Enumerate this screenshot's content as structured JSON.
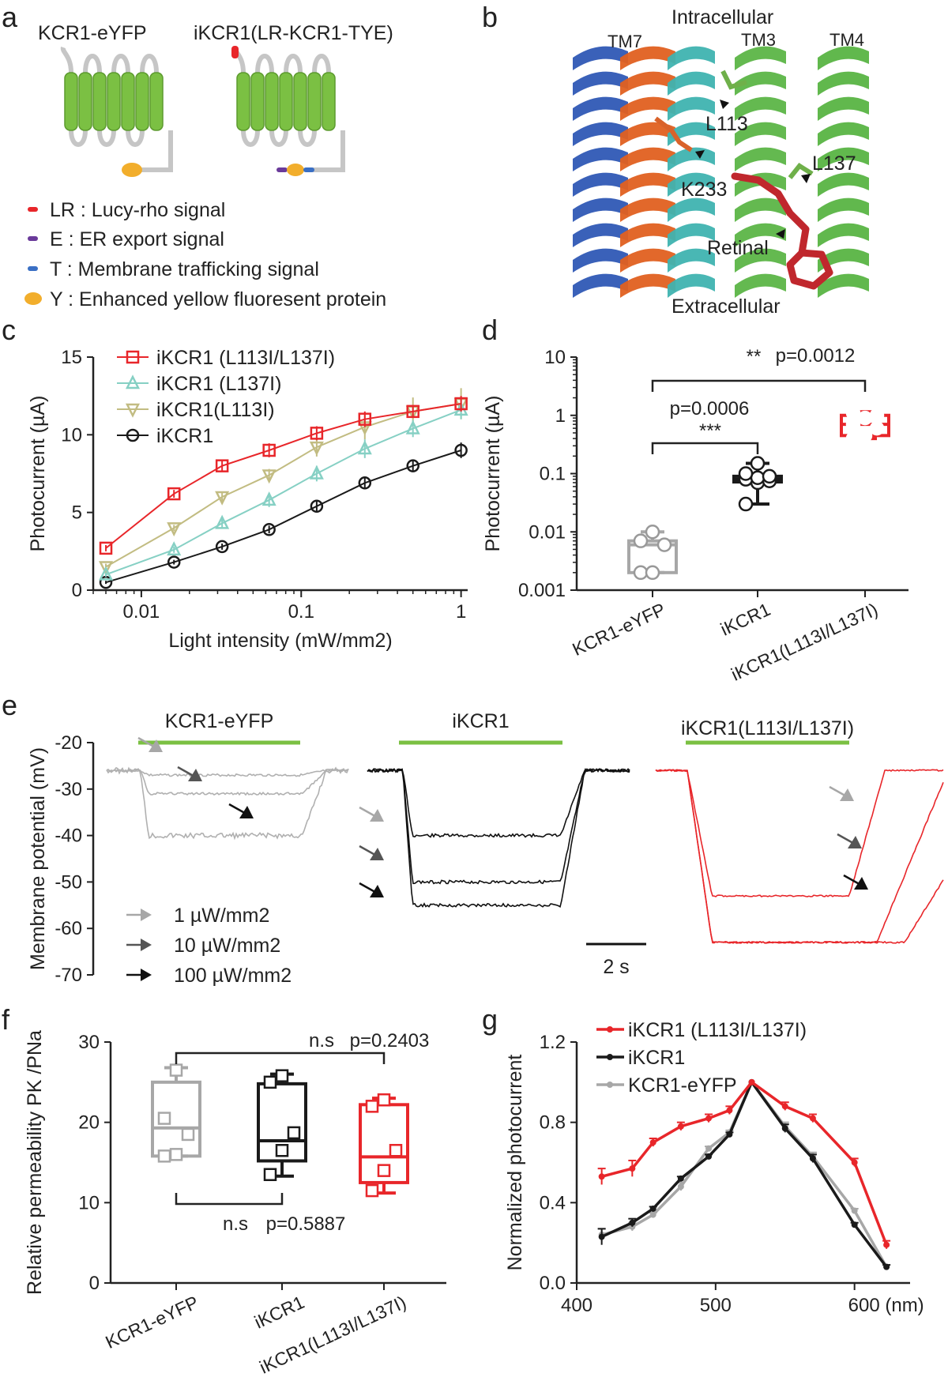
{
  "colors": {
    "red": "#e8262a",
    "black": "#1a1a1a",
    "gray": "#a7a7a7",
    "teal": "#86d0c4",
    "olive": "#c2bc82",
    "green": "#7bc043"
  },
  "panel_letters": [
    "a",
    "b",
    "c",
    "d",
    "e",
    "f",
    "g"
  ],
  "a": {
    "left_title": "KCR1-eYFP",
    "right_title": "iKCR1(LR-KCR1-TYE)",
    "legend": [
      {
        "key": "LR",
        "text": "LR : Lucy-rho signal",
        "color": "#e8262a"
      },
      {
        "key": "E",
        "text": "E : ER export signal",
        "color": "#6a3a9a"
      },
      {
        "key": "T",
        "text": "T : Membrane trafficking signal",
        "color": "#3a6fc4"
      },
      {
        "key": "Y",
        "text": "Y : Enhanced yellow fluoresent protein",
        "color": "#f2ae2c"
      }
    ]
  },
  "b": {
    "labels": [
      "Intracellular",
      "TM7",
      "TM3",
      "TM4",
      "L113",
      "L137",
      "K233",
      "Retinal",
      "Extracellular"
    ]
  },
  "chart_data": [
    {
      "panel": "c",
      "type": "line",
      "xlabel": "Light intensity (mW/mm2)",
      "ylabel": "Photocurrent (µA)",
      "xscale": "log",
      "xlim": [
        0.005,
        1.1
      ],
      "ylim": [
        0,
        15
      ],
      "xticks": [
        0.01,
        0.1,
        1
      ],
      "xtick_labels": [
        "0.01",
        "0.1",
        "1"
      ],
      "yticks": [
        0,
        5,
        10,
        15
      ],
      "ytick_labels": [
        "0",
        "5",
        "10",
        "15"
      ],
      "legend_position": "top-left",
      "x": [
        0.006,
        0.016,
        0.032,
        0.063,
        0.125,
        0.25,
        0.5,
        1
      ],
      "series": [
        {
          "name": "iKCR1 (L113I/L137I)",
          "color": "#e8262a",
          "marker": "square",
          "values": [
            2.7,
            6.2,
            8.0,
            9.0,
            10.1,
            11.0,
            11.5,
            12.0
          ],
          "errors": [
            0.2,
            0.25,
            0.35,
            0.45,
            0.45,
            0.5,
            0.4,
            0.5
          ]
        },
        {
          "name": "iKCR1 (L137I)",
          "color": "#86d0c4",
          "marker": "triangle-up",
          "values": [
            1.0,
            2.6,
            4.3,
            5.8,
            7.5,
            9.1,
            10.4,
            11.6
          ],
          "errors": [
            0.15,
            0.2,
            0.3,
            0.45,
            0.5,
            0.6,
            0.55,
            0.6
          ]
        },
        {
          "name": "iKCR1(L113I)",
          "color": "#c2bc82",
          "marker": "triangle-down",
          "values": [
            1.5,
            4.0,
            6.0,
            7.4,
            9.2,
            10.5,
            11.5,
            12.0
          ],
          "errors": [
            0.2,
            0.2,
            0.3,
            0.4,
            0.6,
            0.8,
            0.9,
            1.0
          ]
        },
        {
          "name": "iKCR1",
          "color": "#1a1a1a",
          "marker": "circle",
          "values": [
            0.5,
            1.8,
            2.8,
            3.9,
            5.4,
            6.9,
            8.0,
            9.0
          ],
          "errors": [
            0.1,
            0.15,
            0.2,
            0.25,
            0.3,
            0.4,
            0.4,
            0.5
          ]
        }
      ]
    },
    {
      "panel": "d",
      "type": "box",
      "ylabel": "Photocurrent (µA)",
      "yscale": "log",
      "ylim": [
        0.001,
        10
      ],
      "yticks": [
        0.001,
        0.01,
        0.1,
        1,
        10
      ],
      "ytick_labels": [
        "0.001",
        "0.01",
        "0.1",
        "1",
        "10"
      ],
      "categories": [
        "KCR1-eYFP",
        "iKCR1",
        "iKCR1(L113I/L137I)"
      ],
      "groups": [
        {
          "color": "#a7a7a7",
          "min": 0.002,
          "q1": 0.002,
          "median": 0.006,
          "q3": 0.007,
          "max": 0.01,
          "points": [
            0.002,
            0.002,
            0.006,
            0.007,
            0.01
          ]
        },
        {
          "color": "#1a1a1a",
          "min": 0.03,
          "q1": 0.072,
          "median": 0.08,
          "q3": 0.09,
          "max": 0.15,
          "points": [
            0.03,
            0.07,
            0.075,
            0.08,
            0.085,
            0.09,
            0.1,
            0.15
          ]
        },
        {
          "color": "#e8262a",
          "min": 0.4,
          "q1": 0.45,
          "median": 0.7,
          "q3": 1.0,
          "max": 1.15,
          "points": [
            0.4,
            0.45,
            0.6,
            0.7,
            0.9,
            1.0,
            1.1
          ]
        }
      ],
      "annotations": [
        {
          "stars": "***",
          "p": "p=0.0006",
          "from": 0,
          "to": 1
        },
        {
          "stars": "**",
          "p": "p=0.0012",
          "from": 0,
          "to": 2
        }
      ]
    },
    {
      "panel": "e",
      "type": "traces",
      "ylabel": "Membrane potential (mV)",
      "ylim": [
        -70,
        -20
      ],
      "yticks": [
        -20,
        -30,
        -40,
        -50,
        -60,
        -70
      ],
      "ytick_labels": [
        "-20",
        "-30",
        "-40",
        "-50",
        "-60",
        "-70"
      ],
      "scalebar": "2 s",
      "legend": [
        {
          "label": "1 µW/mm2",
          "color": "#a7a7a7"
        },
        {
          "label": "10 µW/mm2",
          "color": "#555555"
        },
        {
          "label": "100 µW/mm2",
          "color": "#111111"
        }
      ],
      "groups": [
        {
          "title": "KCR1-eYFP",
          "color": "#b0b0b0",
          "baseline": -26,
          "levels": [
            -27,
            -31,
            -40
          ]
        },
        {
          "title": "iKCR1",
          "color": "#111111",
          "baseline": -26,
          "levels": [
            -40,
            -50,
            -55
          ]
        },
        {
          "title": "iKCR1(L113I/L137I)",
          "color": "#e8262a",
          "baseline": -26,
          "levels": [
            -53,
            -63,
            -63
          ]
        }
      ]
    },
    {
      "panel": "f",
      "type": "box",
      "ylabel": "Relative permeability PK /PNa",
      "ylim": [
        0,
        30
      ],
      "yticks": [
        0,
        10,
        20,
        30
      ],
      "ytick_labels": [
        "0",
        "10",
        "20",
        "30"
      ],
      "categories": [
        "KCR1-eYFP",
        "iKCR1",
        "iKCR1(L113I/L137I)"
      ],
      "groups": [
        {
          "color": "#a7a7a7",
          "min": 15.8,
          "q1": 15.8,
          "median": 19.3,
          "q3": 25.0,
          "max": 26.8,
          "points": [
            15.8,
            16.0,
            18.5,
            20.5,
            26.5
          ]
        },
        {
          "color": "#1a1a1a",
          "min": 13.3,
          "q1": 15.2,
          "median": 17.7,
          "q3": 24.8,
          "max": 26.0,
          "points": [
            13.5,
            16.5,
            18.7,
            25.0,
            25.8
          ]
        },
        {
          "color": "#e8262a",
          "min": 11.2,
          "q1": 12.5,
          "median": 15.7,
          "q3": 22.2,
          "max": 23.0,
          "points": [
            11.5,
            14.0,
            16.5,
            22.0,
            22.8
          ]
        }
      ],
      "annotations": [
        {
          "stars": "n.s",
          "p": "p=0.2403",
          "from": 0,
          "to": 2
        },
        {
          "stars": "n.s",
          "p": "p=0.5887",
          "from": 0,
          "to": 1
        }
      ]
    },
    {
      "panel": "g",
      "type": "line",
      "ylabel": "Normalized photocurrent",
      "ylim": [
        0,
        1.2
      ],
      "xlim": [
        400,
        640
      ],
      "xticks": [
        400,
        500,
        600
      ],
      "xtick_labels": [
        "400",
        "500",
        "600 (nm)"
      ],
      "yticks": [
        0,
        0.4,
        0.8,
        1.2
      ],
      "ytick_labels": [
        "0.0",
        "0.4",
        "0.8",
        "1.2"
      ],
      "legend_position": "top-left",
      "x": [
        418,
        440,
        455,
        475,
        495,
        510,
        526,
        550,
        570,
        600,
        623
      ],
      "series": [
        {
          "name": "iKCR1 (L113I/L137I)",
          "color": "#e8262a",
          "values": [
            0.53,
            0.57,
            0.7,
            0.78,
            0.82,
            0.86,
            1.0,
            0.88,
            0.82,
            0.6,
            0.19
          ],
          "errors": [
            0.04,
            0.04,
            0.02,
            0.02,
            0.02,
            0.02,
            0.0,
            0.02,
            0.02,
            0.02,
            0.02
          ]
        },
        {
          "name": "iKCR1",
          "color": "#1a1a1a",
          "values": [
            0.23,
            0.3,
            0.37,
            0.52,
            0.63,
            0.74,
            1.0,
            0.77,
            0.62,
            0.29,
            0.08
          ],
          "errors": [
            0.04,
            0.02,
            0.01,
            0.01,
            0.01,
            0.01,
            0.0,
            0.02,
            0.02,
            0.01,
            0.01
          ]
        },
        {
          "name": "KCR1-eYFP",
          "color": "#a7a7a7",
          "values": [
            0.24,
            0.28,
            0.34,
            0.48,
            0.67,
            0.75,
            1.0,
            0.78,
            0.63,
            0.36,
            0.08
          ],
          "errors": [
            0.03,
            0.02,
            0.01,
            0.02,
            0.01,
            0.01,
            0.0,
            0.02,
            0.02,
            0.01,
            0.01
          ]
        }
      ]
    }
  ]
}
